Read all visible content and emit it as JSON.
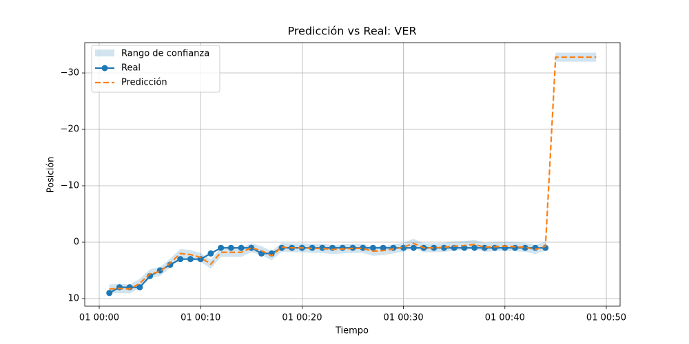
{
  "chart_data": {
    "type": "line",
    "title": "Predicción vs Real: VER",
    "x_label": "Tiempo",
    "y_label": "Posición",
    "x": [
      "01 00:01",
      "01 00:02",
      "01 00:03",
      "01 00:04",
      "01 00:05",
      "01 00:06",
      "01 00:07",
      "01 00:08",
      "01 00:09",
      "01 00:10",
      "01 00:11",
      "01 00:12",
      "01 00:13",
      "01 00:14",
      "01 00:15",
      "01 00:16",
      "01 00:17",
      "01 00:18",
      "01 00:19",
      "01 00:20",
      "01 00:21",
      "01 00:22",
      "01 00:23",
      "01 00:24",
      "01 00:25",
      "01 00:26",
      "01 00:27",
      "01 00:28",
      "01 00:29",
      "01 00:30",
      "01 00:31",
      "01 00:32",
      "01 00:33",
      "01 00:34",
      "01 00:35",
      "01 00:36",
      "01 00:37",
      "01 00:38",
      "01 00:39",
      "01 00:40",
      "01 00:41",
      "01 00:42",
      "01 00:43",
      "01 00:44",
      "01 00:45",
      "01 00:46",
      "01 00:47",
      "01 00:48",
      "01 00:49"
    ],
    "band": {
      "name": "Rango de confianza",
      "color": "#1f77b4",
      "lower": [
        7.5,
        7.4,
        7.5,
        6.5,
        4.8,
        4.4,
        2.9,
        1.2,
        1.4,
        1.9,
        3.1,
        1.0,
        1.0,
        1.0,
        0.2,
        0.7,
        1.6,
        0.1,
        0.2,
        0.2,
        0.3,
        0.3,
        0.5,
        0.4,
        0.3,
        0.3,
        0.8,
        0.7,
        0.4,
        0.1,
        -0.6,
        0.2,
        0.2,
        0.1,
        -0.1,
        -0.2,
        -0.4,
        0.1,
        0.0,
        -0.1,
        0.0,
        0.1,
        0.5,
        -0.1,
        -33.6,
        -33.6,
        -33.6,
        -33.6,
        -33.6
      ],
      "upper": [
        9.1,
        9.0,
        9.1,
        8.1,
        6.4,
        6.0,
        4.5,
        2.8,
        3.0,
        3.5,
        4.7,
        2.6,
        2.6,
        2.6,
        1.8,
        2.3,
        3.2,
        1.7,
        1.8,
        1.8,
        1.9,
        1.9,
        2.1,
        2.0,
        1.9,
        1.9,
        2.4,
        2.3,
        2.0,
        1.7,
        1.0,
        1.8,
        1.8,
        1.7,
        1.5,
        1.4,
        1.2,
        1.7,
        1.6,
        1.5,
        1.6,
        1.7,
        2.1,
        1.5,
        -32.0,
        -32.0,
        -32.0,
        -32.0,
        -32.0
      ]
    },
    "series": [
      {
        "name": "Real",
        "color": "#1f77b4",
        "style": "solid",
        "marker": true,
        "values": [
          9,
          8,
          8,
          8,
          6,
          5,
          4,
          3,
          3,
          3,
          2,
          1,
          1,
          1,
          1,
          2,
          2,
          1,
          1,
          1,
          1,
          1,
          1,
          1,
          1,
          1,
          1,
          1,
          1,
          1,
          1,
          1,
          1,
          1,
          1,
          1,
          1,
          1,
          1,
          1,
          1,
          1,
          1,
          1,
          null,
          null,
          null,
          null,
          null
        ]
      },
      {
        "name": "Predicción",
        "color": "#ff7f0e",
        "style": "dashed",
        "marker": false,
        "values": [
          8.3,
          8.2,
          8.3,
          7.3,
          5.6,
          5.2,
          3.7,
          2.0,
          2.2,
          2.7,
          3.9,
          1.8,
          1.8,
          1.8,
          1.0,
          1.5,
          2.4,
          0.9,
          1.0,
          1.0,
          1.1,
          1.1,
          1.3,
          1.2,
          1.1,
          1.1,
          1.6,
          1.5,
          1.2,
          0.9,
          0.2,
          1.0,
          1.0,
          0.9,
          0.7,
          0.6,
          0.4,
          0.9,
          0.8,
          0.7,
          0.8,
          0.9,
          1.3,
          0.7,
          -32.8,
          -32.8,
          -32.8,
          -32.8,
          -32.8
        ]
      }
    ],
    "xlim": [
      "01 00:00",
      "01 00:50"
    ],
    "xticks": [
      "01 00:00",
      "01 00:10",
      "01 00:20",
      "01 00:30",
      "01 00:40",
      "01 00:50"
    ],
    "ylim": [
      11.34,
      -35.37
    ],
    "yticks": [
      {
        "value": -30,
        "label": "−30"
      },
      {
        "value": -20,
        "label": "−20"
      },
      {
        "value": -10,
        "label": "−10"
      },
      0,
      10
    ],
    "grid": true,
    "legend": "upper left"
  }
}
